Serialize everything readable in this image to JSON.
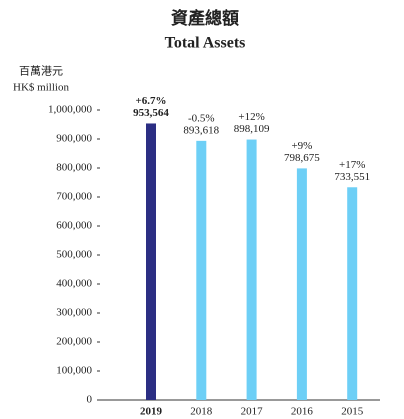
{
  "chart_data": {
    "type": "bar",
    "title": "資產總額",
    "subtitle": "Total Assets",
    "y_label": "百萬港元",
    "y_unit": "HK$ million",
    "categories": [
      "2019",
      "2018",
      "2017",
      "2016",
      "2015"
    ],
    "values": [
      953564,
      893618,
      898109,
      798675,
      733551
    ],
    "value_labels": [
      "953,564",
      "893,618",
      "898,109",
      "798,675",
      "733,551"
    ],
    "annotations": [
      "+6.7%",
      "-0.5%",
      "+12%",
      "+9%",
      "+17%"
    ],
    "colors": [
      "#2b2e83",
      "#6dcff6",
      "#6dcff6",
      "#6dcff6",
      "#6dcff6"
    ],
    "ylim": [
      0,
      1000000
    ],
    "yticks": [
      0,
      {
        "value": 100000,
        "label": "100,000"
      },
      {
        "value": 200000,
        "label": "200,000"
      },
      {
        "value": 300000,
        "label": "300,000"
      },
      {
        "value": 400000,
        "label": "400,000"
      },
      {
        "value": 500000,
        "label": "500,000"
      },
      {
        "value": 600000,
        "label": "600,000"
      },
      {
        "value": 700000,
        "label": "700,000"
      },
      {
        "value": 800000,
        "label": "800,000"
      },
      {
        "value": 900000,
        "label": "900,000"
      },
      {
        "value": 1000000,
        "label": "1,000,000"
      }
    ],
    "grid": false
  }
}
